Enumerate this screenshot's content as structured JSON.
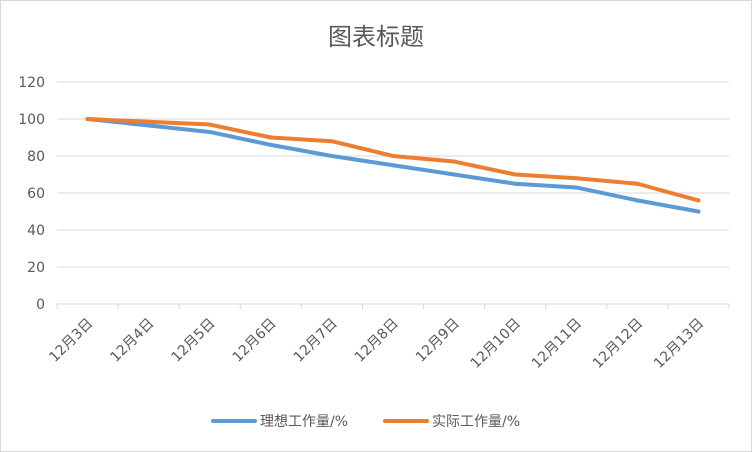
{
  "chart_data": {
    "type": "line",
    "title": "图表标题",
    "categories": [
      "12月3日",
      "12月4日",
      "12月5日",
      "12月6日",
      "12月7日",
      "12月8日",
      "12月9日",
      "12月10日",
      "12月11日",
      "12月12日",
      "12月13日"
    ],
    "ylim": [
      0,
      120
    ],
    "yticks": [
      0,
      20,
      40,
      60,
      80,
      100,
      120
    ],
    "grid": true,
    "legend_position": "bottom",
    "series": [
      {
        "name": "理想工作量/%",
        "color": "#5b9bd5",
        "values": [
          100,
          96.5,
          93,
          86,
          80,
          75,
          70,
          65,
          63,
          56,
          50
        ]
      },
      {
        "name": "实际工作量/%",
        "color": "#ed7d31",
        "values": [
          100,
          98.5,
          97,
          90,
          88,
          80,
          77,
          70,
          68,
          65,
          56
        ]
      }
    ]
  }
}
